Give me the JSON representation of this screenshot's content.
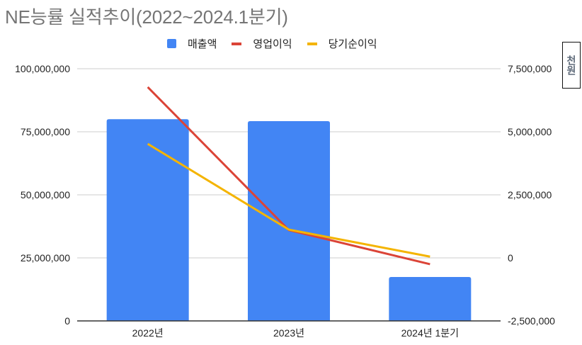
{
  "title": "NE능률 실적추이(2022~2024.1분기)",
  "legend": [
    {
      "label": "매출액",
      "type": "box",
      "color": "#4285f4"
    },
    {
      "label": "영업이익",
      "type": "line",
      "color": "#db4437"
    },
    {
      "label": "당기순이익",
      "type": "line",
      "color": "#f4b400"
    }
  ],
  "unit_label": "천원",
  "chart_data": {
    "type": "bar+line",
    "title": "NE능률 실적추이(2022~2024.1분기)",
    "categories": [
      "2022년",
      "2023년",
      "2024년 1분기"
    ],
    "series": [
      {
        "name": "매출액",
        "type": "bar",
        "axis": "left",
        "color": "#4285f4",
        "values": [
          80000000,
          79200000,
          17400000
        ]
      },
      {
        "name": "영업이익",
        "type": "line",
        "axis": "right",
        "color": "#db4437",
        "values": [
          6770000,
          1100000,
          -250000
        ]
      },
      {
        "name": "당기순이익",
        "type": "line",
        "axis": "right",
        "color": "#f4b400",
        "values": [
          4520000,
          1120000,
          50000
        ]
      }
    ],
    "left_axis": {
      "ylim": [
        0,
        100000000
      ],
      "ticks": [
        0,
        25000000,
        50000000,
        75000000,
        100000000
      ],
      "tick_labels": [
        "0",
        "25,000,000",
        "50,000,000",
        "75,000,000",
        "100,000,000"
      ]
    },
    "right_axis": {
      "label": "천원",
      "ylim": [
        -2500000,
        7500000
      ],
      "ticks": [
        -2500000,
        0,
        2500000,
        5000000,
        7500000
      ],
      "tick_labels": [
        "-2,500,000",
        "0",
        "2,500,000",
        "5,000,000",
        "7,500,000"
      ]
    },
    "xlabel": "",
    "grid": true,
    "legend_position": "top"
  }
}
